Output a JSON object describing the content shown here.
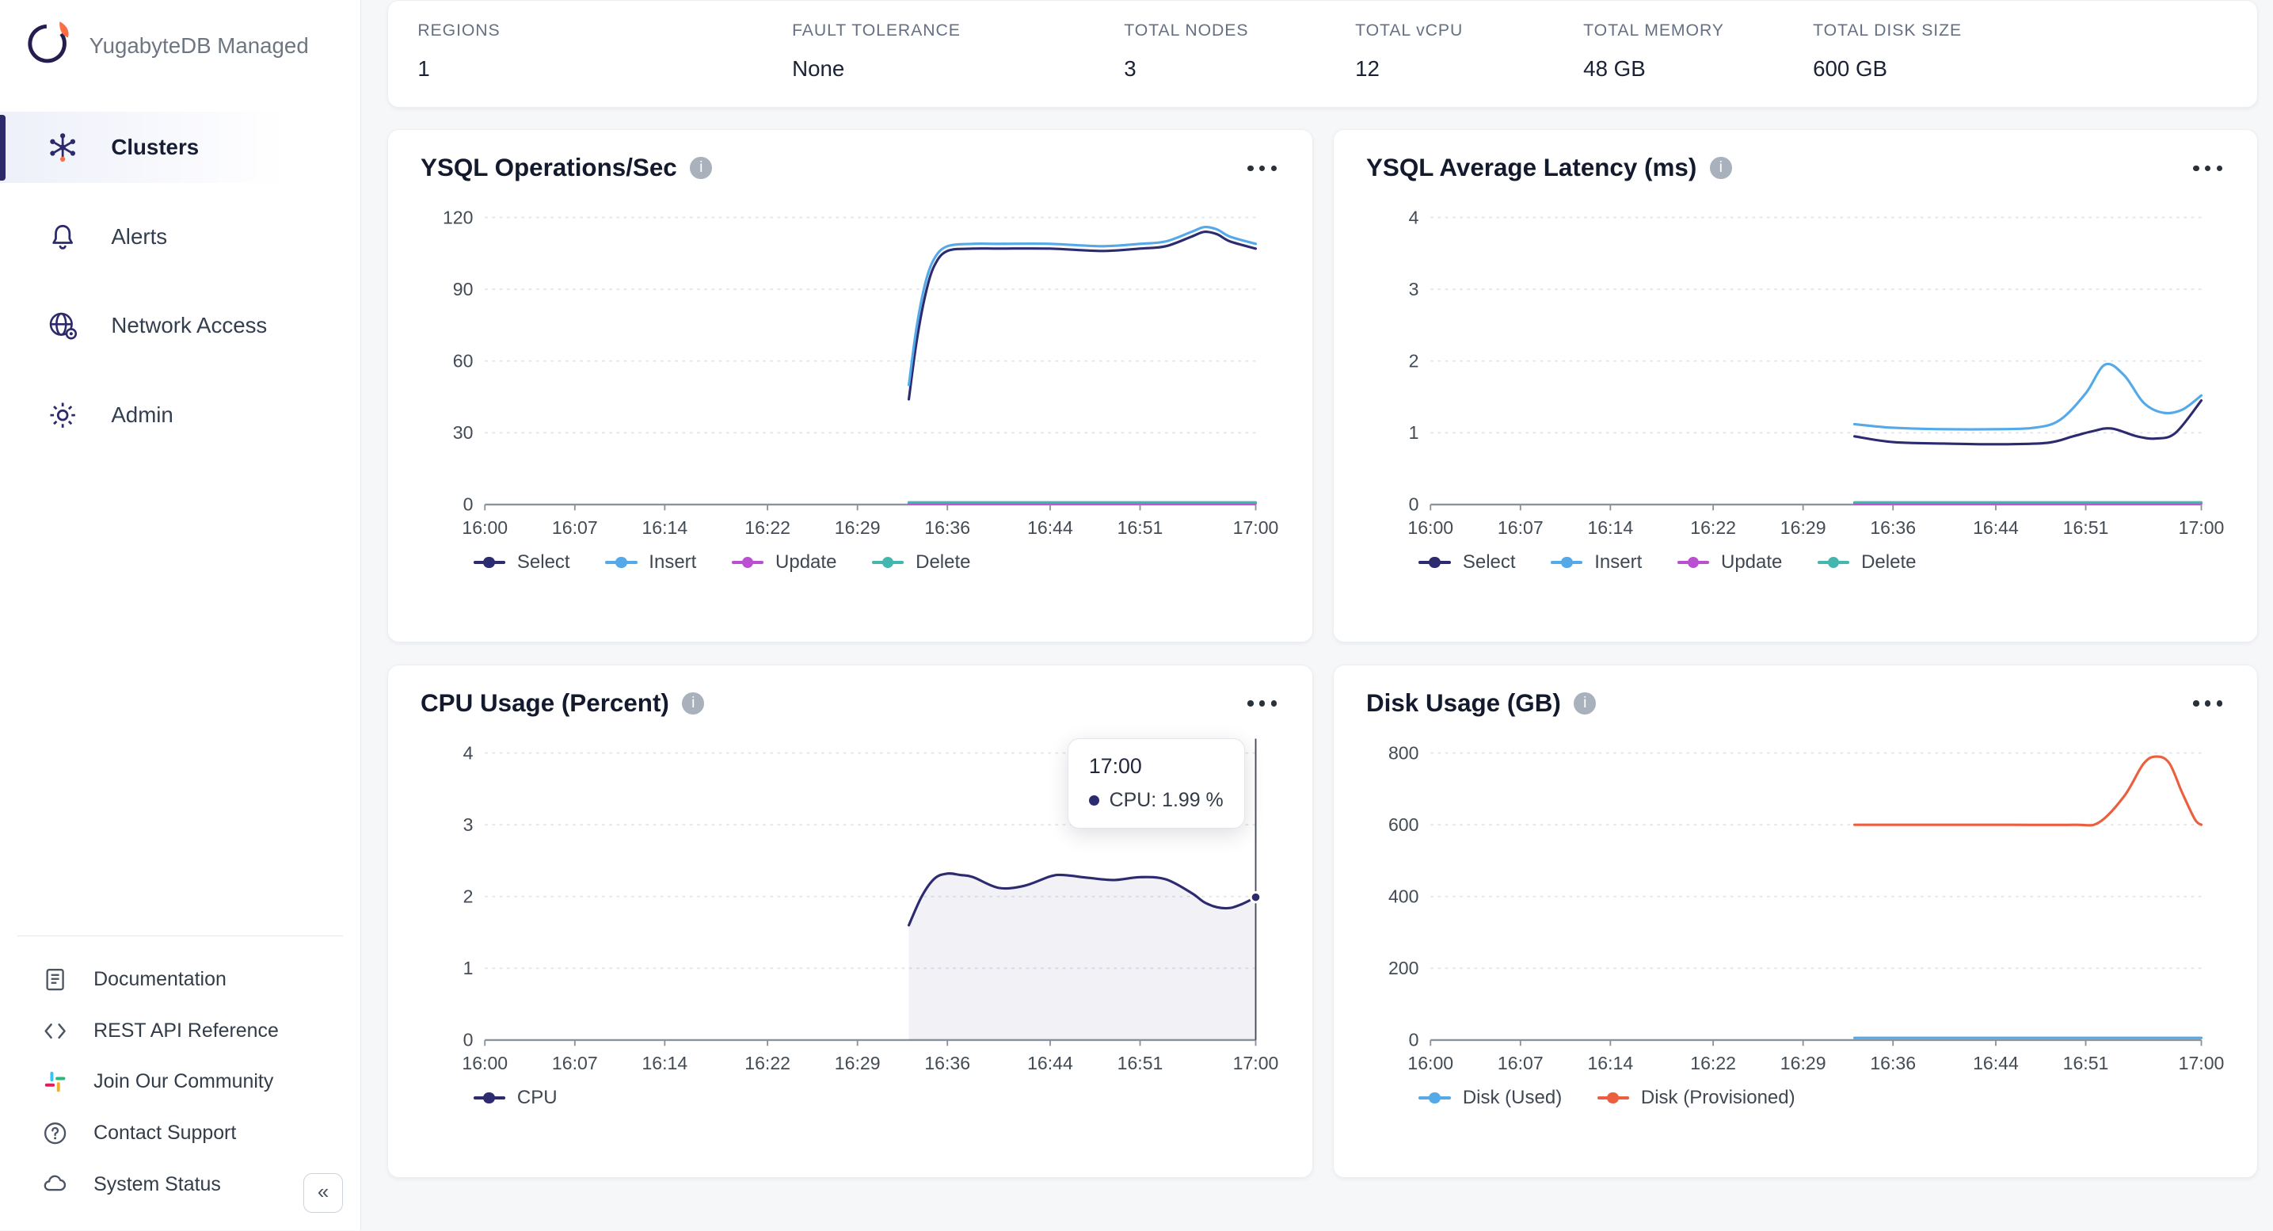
{
  "app": {
    "brand": "YugabyteDB Managed"
  },
  "ui": {
    "info_glyph": "i",
    "collapse_glyph": "«"
  },
  "sidebar": {
    "items": [
      {
        "label": "Clusters"
      },
      {
        "label": "Alerts"
      },
      {
        "label": "Network Access"
      },
      {
        "label": "Admin"
      }
    ],
    "footer_items": [
      {
        "label": "Documentation"
      },
      {
        "label": "REST API Reference"
      },
      {
        "label": "Join Our Community"
      },
      {
        "label": "Contact Support"
      },
      {
        "label": "System Status"
      }
    ]
  },
  "stats": [
    {
      "label": "REGIONS",
      "value": "1"
    },
    {
      "label": "FAULT TOLERANCE",
      "value": "None"
    },
    {
      "label": "TOTAL NODES",
      "value": "3"
    },
    {
      "label": "TOTAL vCPU",
      "value": "12"
    },
    {
      "label": "TOTAL MEMORY",
      "value": "48 GB"
    },
    {
      "label": "TOTAL DISK SIZE",
      "value": "600 GB"
    }
  ],
  "chart_data": [
    {
      "type": "line",
      "title": "YSQL Operations/Sec",
      "xlim": [
        0,
        60
      ],
      "ylim": [
        0,
        126
      ],
      "yticks": [
        0,
        30,
        60,
        90,
        120
      ],
      "x_ticks": [
        {
          "v": 0,
          "label": "16:00"
        },
        {
          "v": 7,
          "label": "16:07"
        },
        {
          "v": 14,
          "label": "16:14"
        },
        {
          "v": 22,
          "label": "16:22"
        },
        {
          "v": 29,
          "label": "16:29"
        },
        {
          "v": 36,
          "label": "16:36"
        },
        {
          "v": 44,
          "label": "16:44"
        },
        {
          "v": 51,
          "label": "16:51"
        },
        {
          "v": 60,
          "label": "17:00"
        }
      ],
      "series": [
        {
          "name": "Select",
          "color": "#2d2b70",
          "x": [
            33,
            33.6,
            34.3,
            35,
            36,
            38,
            40,
            44,
            48,
            51,
            53,
            55,
            56,
            57,
            58,
            60
          ],
          "y": [
            44,
            68,
            88,
            100,
            106,
            107,
            107,
            107,
            106,
            107,
            108,
            112,
            114,
            113,
            110,
            107
          ]
        },
        {
          "name": "Insert",
          "color": "#55a9e8",
          "x": [
            33,
            33.6,
            34.3,
            35,
            36,
            38,
            40,
            44,
            48,
            51,
            53,
            55,
            56,
            57,
            58,
            60
          ],
          "y": [
            50,
            74,
            93,
            103,
            108,
            109,
            109,
            109,
            108,
            109,
            110,
            114,
            116,
            115,
            112,
            109
          ]
        },
        {
          "name": "Update",
          "color": "#bb4fd1",
          "x": [
            33,
            60
          ],
          "y": [
            0.5,
            0.5
          ]
        },
        {
          "name": "Delete",
          "color": "#43b6ae",
          "x": [
            33,
            60
          ],
          "y": [
            0.9,
            0.9
          ]
        }
      ]
    },
    {
      "type": "line",
      "title": "YSQL Average Latency (ms)",
      "xlim": [
        0,
        60
      ],
      "ylim": [
        0,
        4.2
      ],
      "yticks": [
        0,
        1,
        2,
        3,
        4
      ],
      "x_ticks": [
        {
          "v": 0,
          "label": "16:00"
        },
        {
          "v": 7,
          "label": "16:07"
        },
        {
          "v": 14,
          "label": "16:14"
        },
        {
          "v": 22,
          "label": "16:22"
        },
        {
          "v": 29,
          "label": "16:29"
        },
        {
          "v": 36,
          "label": "16:36"
        },
        {
          "v": 44,
          "label": "16:44"
        },
        {
          "v": 51,
          "label": "16:51"
        },
        {
          "v": 60,
          "label": "17:00"
        }
      ],
      "series": [
        {
          "name": "Select",
          "color": "#2d2b70",
          "x": [
            33,
            36,
            40,
            44,
            48,
            50,
            51.5,
            53,
            55,
            56.5,
            58,
            60
          ],
          "y": [
            0.95,
            0.87,
            0.85,
            0.84,
            0.86,
            0.95,
            1.02,
            1.06,
            0.95,
            0.92,
            1.0,
            1.45
          ]
        },
        {
          "name": "Insert",
          "color": "#55a9e8",
          "x": [
            33,
            36,
            40,
            44,
            47,
            49,
            51,
            52.5,
            54,
            55.5,
            57,
            58.5,
            60
          ],
          "y": [
            1.12,
            1.07,
            1.05,
            1.05,
            1.07,
            1.18,
            1.55,
            1.95,
            1.8,
            1.42,
            1.28,
            1.32,
            1.52
          ]
        },
        {
          "name": "Update",
          "color": "#bb4fd1",
          "x": [
            33,
            60
          ],
          "y": [
            0.015,
            0.015
          ]
        },
        {
          "name": "Delete",
          "color": "#43b6ae",
          "x": [
            33,
            60
          ],
          "y": [
            0.03,
            0.03
          ]
        }
      ]
    },
    {
      "type": "area",
      "title": "CPU Usage (Percent)",
      "xlim": [
        0,
        60
      ],
      "ylim": [
        0,
        4.2
      ],
      "yticks": [
        0,
        1,
        2,
        3,
        4
      ],
      "x_ticks": [
        {
          "v": 0,
          "label": "16:00"
        },
        {
          "v": 7,
          "label": "16:07"
        },
        {
          "v": 14,
          "label": "16:14"
        },
        {
          "v": 22,
          "label": "16:22"
        },
        {
          "v": 29,
          "label": "16:29"
        },
        {
          "v": 36,
          "label": "16:36"
        },
        {
          "v": 44,
          "label": "16:44"
        },
        {
          "v": 51,
          "label": "16:51"
        },
        {
          "v": 60,
          "label": "17:00"
        }
      ],
      "crosshair_x": 60,
      "tooltip": {
        "time": "17:00",
        "label": "CPU: 1.99 %"
      },
      "series": [
        {
          "name": "CPU",
          "color": "#2d2b70",
          "fill": "#3a357f",
          "fill_opacity": 0.07,
          "end_dot": true,
          "x": [
            33,
            34,
            35,
            36,
            37,
            38,
            40,
            42,
            44,
            45,
            47,
            49,
            51,
            53,
            55,
            56,
            57,
            58,
            59,
            60
          ],
          "y": [
            1.6,
            2.0,
            2.25,
            2.32,
            2.3,
            2.27,
            2.12,
            2.15,
            2.28,
            2.3,
            2.26,
            2.23,
            2.27,
            2.24,
            2.05,
            1.92,
            1.85,
            1.84,
            1.9,
            1.99
          ]
        }
      ]
    },
    {
      "type": "line",
      "title": "Disk Usage (GB)",
      "xlim": [
        0,
        60
      ],
      "ylim": [
        0,
        840
      ],
      "yticks": [
        0,
        200,
        400,
        600,
        800
      ],
      "x_ticks": [
        {
          "v": 0,
          "label": "16:00"
        },
        {
          "v": 7,
          "label": "16:07"
        },
        {
          "v": 14,
          "label": "16:14"
        },
        {
          "v": 22,
          "label": "16:22"
        },
        {
          "v": 29,
          "label": "16:29"
        },
        {
          "v": 36,
          "label": "16:36"
        },
        {
          "v": 44,
          "label": "16:44"
        },
        {
          "v": 51,
          "label": "16:51"
        },
        {
          "v": 60,
          "label": "17:00"
        }
      ],
      "series": [
        {
          "name": "Disk (Used)",
          "color": "#55a9e8",
          "x": [
            33,
            60
          ],
          "y": [
            6,
            6
          ]
        },
        {
          "name": "Disk (Provisioned)",
          "color": "#eb5f40",
          "x": [
            33,
            44,
            50,
            52,
            54,
            55.5,
            56.5,
            57.5,
            58.5,
            59.5,
            60
          ],
          "y": [
            600,
            600,
            600,
            606,
            680,
            770,
            790,
            772,
            690,
            615,
            600
          ]
        }
      ]
    }
  ]
}
